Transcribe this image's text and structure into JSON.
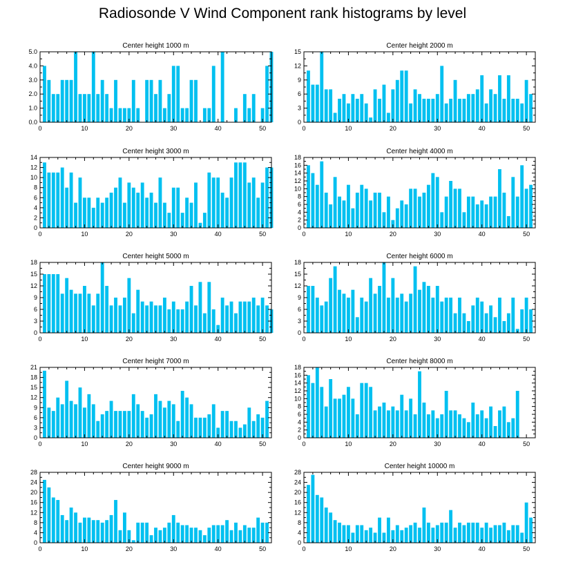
{
  "title": "Radiosonde V Wind Component rank histograms by level",
  "bar_color": "#00c0f0",
  "chart_data": [
    {
      "type": "bar",
      "title": "Center height 1000 m",
      "xlim": [
        0,
        52
      ],
      "xticks": [
        0,
        10,
        20,
        30,
        40,
        50
      ],
      "ylim": [
        0,
        5
      ],
      "yticks": [
        "0.0",
        "1.0",
        "2.0",
        "3.0",
        "4.0",
        "5.0"
      ],
      "values": [
        4,
        3,
        2,
        2,
        3,
        3,
        3,
        5,
        2,
        2,
        2,
        5,
        2,
        3,
        2,
        1,
        3,
        1,
        1,
        1,
        3,
        1,
        0,
        3,
        3,
        2,
        3,
        1,
        2,
        4,
        4,
        1,
        1,
        3,
        3,
        0,
        1,
        1,
        4,
        0,
        5,
        0,
        0,
        1,
        0,
        2,
        1,
        2,
        0,
        1,
        4,
        5
      ]
    },
    {
      "type": "bar",
      "title": "Center height 2000 m",
      "xlim": [
        0,
        52
      ],
      "xticks": [
        0,
        10,
        20,
        30,
        40,
        50
      ],
      "ylim": [
        0,
        15
      ],
      "yticks": [
        "0",
        "3",
        "6",
        "9",
        "12",
        "15"
      ],
      "values": [
        11,
        8,
        8,
        15,
        7,
        7,
        2,
        5,
        6,
        4,
        6,
        5,
        6,
        4,
        1,
        7,
        5,
        8,
        2,
        7,
        9,
        11,
        11,
        4,
        7,
        6,
        5,
        5,
        5,
        6,
        12,
        4,
        5,
        9,
        5,
        5,
        6,
        6,
        7,
        10,
        4,
        7,
        6,
        10,
        5,
        10,
        5,
        5,
        4,
        9,
        6
      ]
    },
    {
      "type": "bar",
      "title": "Center height 3000 m",
      "xlim": [
        0,
        52
      ],
      "xticks": [
        0,
        10,
        20,
        30,
        40,
        50
      ],
      "ylim": [
        0,
        14
      ],
      "yticks": [
        "0",
        "2",
        "4",
        "6",
        "8",
        "10",
        "12",
        "14"
      ],
      "values": [
        13,
        11,
        11,
        11,
        12,
        8,
        11,
        5,
        10,
        6,
        6,
        4,
        6,
        5,
        6,
        7,
        8,
        10,
        5,
        9,
        8,
        7,
        9,
        6,
        7,
        5,
        10,
        5,
        3,
        8,
        8,
        3,
        6,
        5,
        9,
        1,
        3,
        11,
        10,
        10,
        7,
        6,
        10,
        13,
        13,
        13,
        9,
        10,
        6,
        9,
        12,
        12
      ]
    },
    {
      "type": "bar",
      "title": "Center height 4000 m",
      "xlim": [
        0,
        52
      ],
      "xticks": [
        0,
        10,
        20,
        30,
        40,
        50
      ],
      "ylim": [
        0,
        18
      ],
      "yticks": [
        "0",
        "2",
        "4",
        "6",
        "8",
        "10",
        "12",
        "14",
        "16",
        "18"
      ],
      "values": [
        16,
        14,
        11,
        17,
        9,
        6,
        13,
        8,
        7,
        11,
        5,
        9,
        11,
        10,
        7,
        9,
        9,
        4,
        8,
        2,
        5,
        7,
        6,
        10,
        10,
        8,
        9,
        11,
        14,
        13,
        4,
        8,
        12,
        10,
        10,
        4,
        8,
        8,
        6,
        7,
        6,
        8,
        8,
        15,
        9,
        3,
        13,
        8,
        16,
        10,
        11
      ]
    },
    {
      "type": "bar",
      "title": "Center height 5000 m",
      "xlim": [
        0,
        52
      ],
      "xticks": [
        0,
        10,
        20,
        30,
        40,
        50
      ],
      "ylim": [
        0,
        18
      ],
      "yticks": [
        "0",
        "3",
        "6",
        "9",
        "12",
        "15",
        "18"
      ],
      "values": [
        15,
        15,
        15,
        15,
        10,
        14,
        11,
        10,
        10,
        12,
        10,
        7,
        10,
        18,
        12,
        7,
        9,
        7,
        9,
        14,
        5,
        11,
        8,
        7,
        8,
        7,
        7,
        9,
        6,
        8,
        6,
        6,
        8,
        12,
        7,
        13,
        5,
        13,
        6,
        2,
        9,
        7,
        8,
        5,
        8,
        8,
        8,
        9,
        7,
        9,
        7,
        6
      ]
    },
    {
      "type": "bar",
      "title": "Center height 6000 m",
      "xlim": [
        0,
        52
      ],
      "xticks": [
        0,
        10,
        20,
        30,
        40,
        50
      ],
      "ylim": [
        0,
        18
      ],
      "yticks": [
        "0",
        "3",
        "6",
        "9",
        "12",
        "15",
        "18"
      ],
      "values": [
        12,
        12,
        9,
        7,
        8,
        14,
        17,
        11,
        10,
        9,
        11,
        4,
        9,
        8,
        14,
        10,
        12,
        18,
        9,
        14,
        9,
        10,
        8,
        10,
        17,
        11,
        13,
        12,
        9,
        12,
        8,
        9,
        9,
        5,
        9,
        5,
        3,
        7,
        9,
        8,
        5,
        7,
        4,
        9,
        3,
        5,
        9,
        1,
        6,
        9,
        6
      ]
    },
    {
      "type": "bar",
      "title": "Center height 7000 m",
      "xlim": [
        0,
        52
      ],
      "xticks": [
        0,
        10,
        20,
        30,
        40,
        50
      ],
      "ylim": [
        0,
        21
      ],
      "yticks": [
        "0",
        "3",
        "6",
        "9",
        "12",
        "15",
        "18",
        "21"
      ],
      "values": [
        20,
        9,
        8,
        12,
        10,
        17,
        11,
        10,
        15,
        9,
        13,
        10,
        5,
        7,
        8,
        11,
        8,
        8,
        8,
        8,
        13,
        10,
        8,
        6,
        7,
        13,
        11,
        9,
        11,
        10,
        5,
        14,
        12,
        10,
        6,
        6,
        6,
        7,
        10,
        3,
        8,
        8,
        5,
        5,
        3,
        4,
        9,
        5,
        7,
        6,
        11
      ]
    },
    {
      "type": "bar",
      "title": "Center height 8000 m",
      "xlim": [
        0,
        52
      ],
      "xticks": [
        0,
        10,
        20,
        30,
        40,
        50
      ],
      "ylim": [
        0,
        18
      ],
      "yticks": [
        "0",
        "2",
        "4",
        "6",
        "8",
        "10",
        "12",
        "14",
        "16",
        "18"
      ],
      "values": [
        16,
        14,
        18,
        13,
        8,
        15,
        10,
        10,
        11,
        13,
        10,
        6,
        14,
        14,
        13,
        7,
        8,
        9,
        7,
        8,
        7,
        11,
        7,
        10,
        6,
        17,
        9,
        6,
        7,
        5,
        6,
        12,
        7,
        7,
        6,
        5,
        4,
        9,
        6,
        7,
        5,
        8,
        3,
        7,
        8,
        4,
        5,
        12
      ]
    },
    {
      "type": "bar",
      "title": "Center height 9000 m",
      "xlim": [
        0,
        52
      ],
      "xticks": [
        0,
        10,
        20,
        30,
        40,
        50
      ],
      "ylim": [
        0,
        28
      ],
      "yticks": [
        "0",
        "4",
        "8",
        "12",
        "16",
        "20",
        "24",
        "28"
      ],
      "values": [
        25,
        22,
        18,
        17,
        11,
        9,
        14,
        12,
        8,
        10,
        10,
        9,
        9,
        8,
        9,
        11,
        17,
        5,
        12,
        5,
        1,
        8,
        8,
        8,
        3,
        6,
        5,
        6,
        8,
        11,
        8,
        7,
        7,
        6,
        6,
        5,
        3,
        6,
        7,
        7,
        7,
        9,
        5,
        8,
        5,
        7,
        6,
        6,
        10,
        8,
        8
      ]
    },
    {
      "type": "bar",
      "title": "Center height 10000 m",
      "xlim": [
        0,
        52
      ],
      "xticks": [
        0,
        10,
        20,
        30,
        40,
        50
      ],
      "ylim": [
        0,
        28
      ],
      "yticks": [
        "0",
        "4",
        "8",
        "12",
        "16",
        "20",
        "24",
        "28"
      ],
      "values": [
        23,
        27,
        19,
        18,
        14,
        12,
        9,
        8,
        7,
        7,
        4,
        7,
        7,
        5,
        6,
        4,
        10,
        4,
        10,
        5,
        7,
        5,
        6,
        7,
        8,
        6,
        14,
        8,
        6,
        7,
        8,
        8,
        13,
        6,
        8,
        7,
        8,
        8,
        8,
        6,
        8,
        6,
        7,
        7,
        8,
        5,
        7,
        7,
        4,
        16,
        10
      ]
    }
  ]
}
